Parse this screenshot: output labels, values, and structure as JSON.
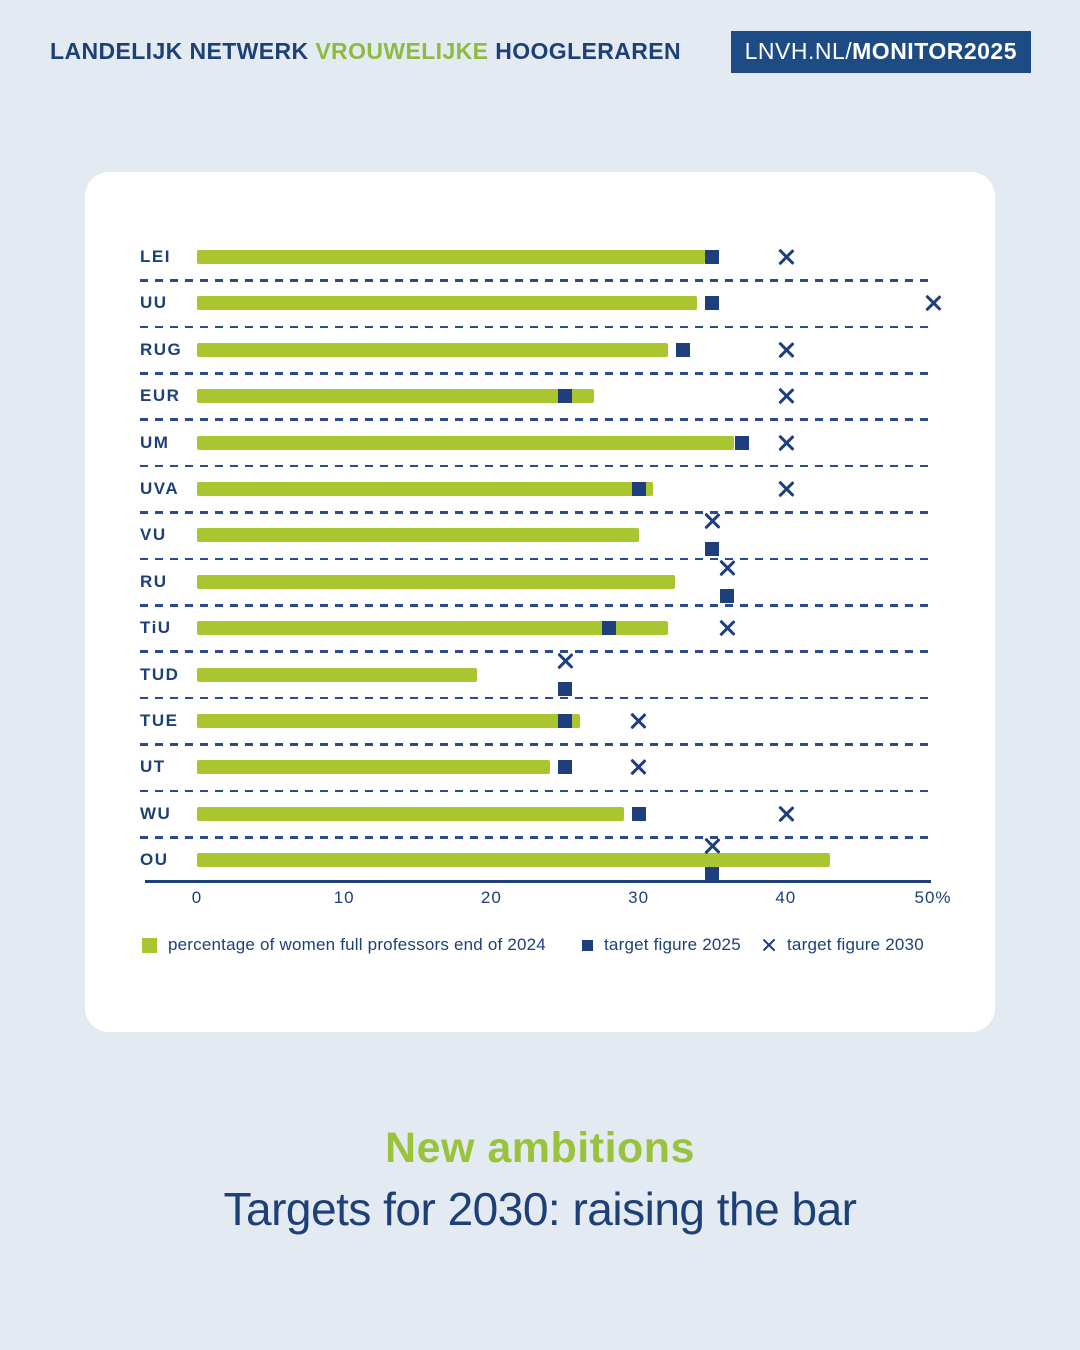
{
  "header": {
    "title_part1": "LANDELIJK NETWERK ",
    "title_accent": "VROUWELIJKE",
    "title_part2": " HOOGLERAREN",
    "badge_regular": "LNVH.NL/",
    "badge_bold": "MONITOR2025"
  },
  "chart_data": {
    "type": "bar",
    "orientation": "horizontal",
    "title": "New ambitions",
    "subtitle": "Targets for 2030: raising the bar",
    "xlim": [
      0,
      50
    ],
    "tick_values": [
      0,
      10,
      20,
      30,
      40,
      50
    ],
    "ticks": [
      "0",
      "10",
      "20",
      "30",
      "40",
      "50%"
    ],
    "grid": "dashed row separators",
    "legend_position": "bottom",
    "categories": [
      "LEI",
      "UU",
      "RUG",
      "EUR",
      "UM",
      "UVA",
      "VU",
      "RU",
      "TiU",
      "TUD",
      "TUE",
      "UT",
      "WU",
      "OU"
    ],
    "series": [
      {
        "name": "percentage of women full professors end of 2024",
        "marker": "green-bar",
        "values": [
          34.5,
          34,
          32,
          27,
          36.5,
          31,
          30,
          32.5,
          32,
          19,
          26,
          24,
          29,
          43
        ]
      },
      {
        "name": "target figure 2025",
        "marker": "navy-square",
        "values": [
          35,
          35,
          33,
          25,
          37,
          30,
          35,
          36,
          28,
          25,
          25,
          25,
          30,
          35
        ]
      },
      {
        "name": "target figure 2030",
        "marker": "x-cross",
        "values": [
          40,
          50,
          40,
          40,
          40,
          40,
          35,
          36,
          36,
          25,
          30,
          30,
          40,
          35
        ]
      }
    ]
  },
  "footer": {
    "title": "New ambitions",
    "subtitle": "Targets for 2030: raising the bar"
  },
  "colors": {
    "background": "#e4eaf2",
    "card": "#ffffff",
    "navy_text": "#1d4077",
    "navy_marker": "#1e3e7c",
    "badge_background": "#1d4b84",
    "bar_green": "#a9c52f",
    "accent_green": "#8eba3f",
    "title_green": "#99c33d"
  }
}
